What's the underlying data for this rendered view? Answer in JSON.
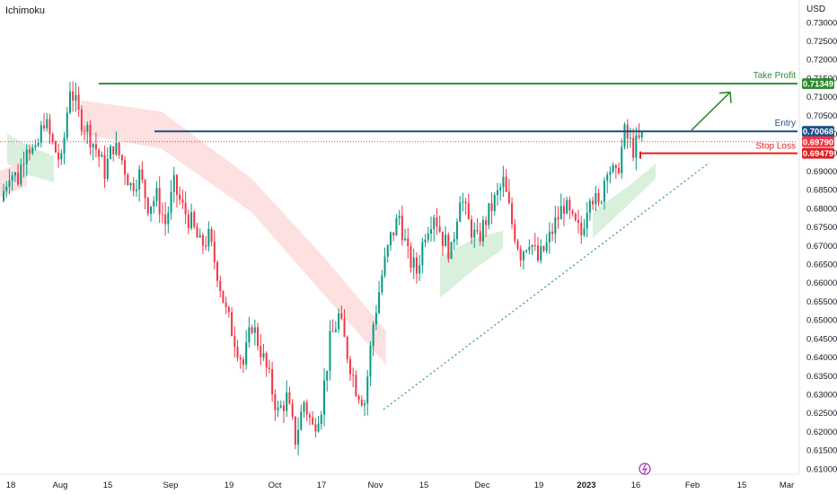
{
  "indicator_label": "Ichimoku",
  "currency_label": "USD",
  "colors": {
    "up": "#089981",
    "down": "#f23645",
    "take_profit": "#2e8b2e",
    "entry": "#1c4f87",
    "stop_loss": "#e02020",
    "current_price": "#f23645",
    "trendline": "#2e9e4e",
    "cloud_bull": "#d9f0dc",
    "cloud_bear": "#fde0e0",
    "event_icon": "#9c27b0"
  },
  "chart_data": {
    "type": "candlestick",
    "symbol_pair_currency": "USD",
    "y_ticks": [
      "0.73000",
      "0.72500",
      "0.72000",
      "0.71500",
      "0.71000",
      "0.70500",
      "0.70000",
      "0.69500",
      "0.69000",
      "0.68500",
      "0.68000",
      "0.67500",
      "0.67000",
      "0.66500",
      "0.66000",
      "0.65500",
      "0.65000",
      "0.64500",
      "0.64000",
      "0.63500",
      "0.63000",
      "0.62500",
      "0.62000",
      "0.61500",
      "0.61000"
    ],
    "ylim": [
      0.609,
      0.7355
    ],
    "x_ticks": [
      {
        "label": "18",
        "bold": false
      },
      {
        "label": "Aug",
        "bold": false
      },
      {
        "label": "15",
        "bold": false
      },
      {
        "label": "Sep",
        "bold": false
      },
      {
        "label": "19",
        "bold": false
      },
      {
        "label": "Oct",
        "bold": false
      },
      {
        "label": "17",
        "bold": false
      },
      {
        "label": "Nov",
        "bold": false
      },
      {
        "label": "15",
        "bold": false
      },
      {
        "label": "Dec",
        "bold": false
      },
      {
        "label": "19",
        "bold": false
      },
      {
        "label": "2023",
        "bold": true
      },
      {
        "label": "16",
        "bold": false
      },
      {
        "label": "Feb",
        "bold": false
      },
      {
        "label": "15",
        "bold": false
      },
      {
        "label": "Mar",
        "bold": false
      }
    ],
    "levels": [
      {
        "name": "Take Profit",
        "value": 0.71349,
        "tag": "0.71349",
        "color_key": "take_profit"
      },
      {
        "name": "Entry",
        "value": 0.70068,
        "tag": "0.70068",
        "color_key": "entry"
      },
      {
        "name": "Stop Loss",
        "value": 0.69479,
        "tag": "0.69479",
        "color_key": "stop_loss"
      }
    ],
    "current_price": {
      "value": 0.6979,
      "tag": "0.69790"
    },
    "price_path": [
      [
        0.682,
        0.69
      ],
      [
        0.69,
        0.688
      ],
      [
        0.688,
        0.698
      ],
      [
        0.698,
        0.694
      ],
      [
        0.694,
        0.704
      ],
      [
        0.704,
        0.697
      ],
      [
        0.697,
        0.692
      ],
      [
        0.692,
        0.713
      ],
      [
        0.713,
        0.705
      ],
      [
        0.705,
        0.701
      ],
      [
        0.701,
        0.696
      ],
      [
        0.696,
        0.69
      ],
      [
        0.69,
        0.697
      ],
      [
        0.697,
        0.693
      ],
      [
        0.693,
        0.686
      ],
      [
        0.686,
        0.689
      ],
      [
        0.689,
        0.681
      ],
      [
        0.681,
        0.683
      ],
      [
        0.683,
        0.676
      ],
      [
        0.676,
        0.686
      ],
      [
        0.686,
        0.68
      ],
      [
        0.68,
        0.676
      ],
      [
        0.676,
        0.67
      ],
      [
        0.67,
        0.672
      ],
      [
        0.672,
        0.663
      ],
      [
        0.663,
        0.652
      ],
      [
        0.652,
        0.645
      ],
      [
        0.645,
        0.638
      ],
      [
        0.638,
        0.649
      ],
      [
        0.649,
        0.642
      ],
      [
        0.642,
        0.634
      ],
      [
        0.634,
        0.625
      ],
      [
        0.625,
        0.629
      ],
      [
        0.629,
        0.618
      ],
      [
        0.618,
        0.628
      ],
      [
        0.628,
        0.621
      ],
      [
        0.621,
        0.627
      ],
      [
        0.627,
        0.644
      ],
      [
        0.644,
        0.651
      ],
      [
        0.651,
        0.641
      ],
      [
        0.641,
        0.632
      ],
      [
        0.632,
        0.628
      ],
      [
        0.628,
        0.649
      ],
      [
        0.649,
        0.662
      ],
      [
        0.662,
        0.672
      ],
      [
        0.672,
        0.678
      ],
      [
        0.678,
        0.667
      ],
      [
        0.667,
        0.663
      ],
      [
        0.663,
        0.674
      ],
      [
        0.674,
        0.679
      ],
      [
        0.679,
        0.672
      ],
      [
        0.672,
        0.668
      ],
      [
        0.668,
        0.684
      ],
      [
        0.684,
        0.676
      ],
      [
        0.676,
        0.671
      ],
      [
        0.671,
        0.677
      ],
      [
        0.677,
        0.682
      ],
      [
        0.682,
        0.687
      ],
      [
        0.687,
        0.676
      ],
      [
        0.676,
        0.668
      ],
      [
        0.668,
        0.672
      ],
      [
        0.672,
        0.666
      ],
      [
        0.666,
        0.67
      ],
      [
        0.67,
        0.676
      ],
      [
        0.676,
        0.681
      ],
      [
        0.681,
        0.676
      ],
      [
        0.676,
        0.673
      ],
      [
        0.673,
        0.685
      ],
      [
        0.685,
        0.68
      ],
      [
        0.68,
        0.692
      ],
      [
        0.692,
        0.688
      ],
      [
        0.688,
        0.7
      ],
      [
        0.7,
        0.696
      ],
      [
        0.696,
        0.699
      ]
    ],
    "bull_cloud_segments": [
      [
        [
          8,
          0.692
        ],
        [
          30,
          0.689
        ],
        [
          60,
          0.687
        ],
        [
          60,
          0.694
        ],
        [
          30,
          0.697
        ],
        [
          8,
          0.7
        ]
      ],
      [
        [
          490,
          0.656
        ],
        [
          530,
          0.664
        ],
        [
          560,
          0.669
        ],
        [
          560,
          0.674
        ],
        [
          530,
          0.672
        ],
        [
          490,
          0.667
        ]
      ],
      [
        [
          660,
          0.679
        ],
        [
          700,
          0.686
        ],
        [
          730,
          0.692
        ],
        [
          730,
          0.688
        ],
        [
          700,
          0.681
        ],
        [
          660,
          0.672
        ]
      ]
    ],
    "bear_cloud_segments": [
      [
        [
          90,
          0.7
        ],
        [
          180,
          0.696
        ],
        [
          280,
          0.679
        ],
        [
          360,
          0.657
        ],
        [
          430,
          0.638
        ],
        [
          430,
          0.647
        ],
        [
          360,
          0.667
        ],
        [
          280,
          0.688
        ],
        [
          180,
          0.706
        ],
        [
          90,
          0.709
        ]
      ],
      [
        [
          0,
          0.683
        ],
        [
          30,
          0.686
        ],
        [
          30,
          0.693
        ],
        [
          0,
          0.69
        ]
      ]
    ],
    "trendline": {
      "x_start": 0.6259,
      "x_end": 0.6923,
      "style": "dotted"
    },
    "target_arrow": {
      "label": "",
      "from_price": 0.701,
      "to_price": 0.7112
    },
    "event_icon": "lightning-icon"
  }
}
